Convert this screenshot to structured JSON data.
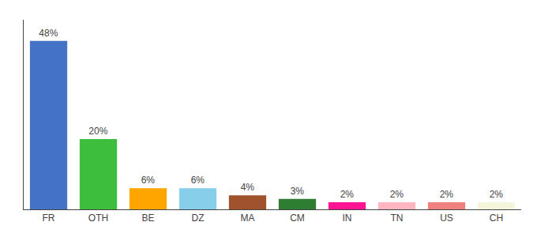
{
  "chart_data": {
    "type": "bar",
    "categories": [
      "FR",
      "OTH",
      "BE",
      "DZ",
      "MA",
      "CM",
      "IN",
      "TN",
      "US",
      "CH"
    ],
    "values": [
      48,
      20,
      6,
      6,
      4,
      3,
      2,
      2,
      2,
      2
    ],
    "value_labels": [
      "48%",
      "20%",
      "6%",
      "6%",
      "4%",
      "3%",
      "2%",
      "2%",
      "2%",
      "2%"
    ],
    "colors": [
      "#4472C4",
      "#3DBF3D",
      "#FFA500",
      "#87CEEB",
      "#A0522D",
      "#2E7D32",
      "#FF1493",
      "#FFB6C1",
      "#F08080",
      "#F5F5DC"
    ],
    "ylim": [
      0,
      54
    ],
    "grid": false,
    "data_labels": true,
    "tick_labels": "x"
  }
}
